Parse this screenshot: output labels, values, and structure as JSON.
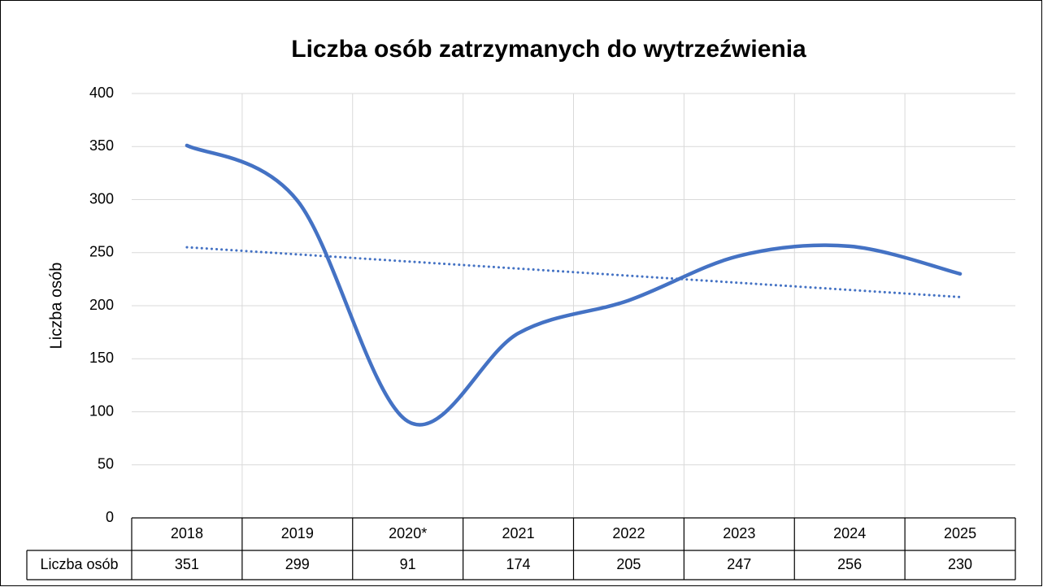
{
  "chart_data": {
    "type": "line",
    "title": "Liczba osób zatrzymanych do wytrzeźwienia",
    "y_label": "Liczba osób",
    "categories": [
      "2018",
      "2019",
      "2020*",
      "2021",
      "2022",
      "2023",
      "2024",
      "2025"
    ],
    "series": [
      {
        "name": "Liczba osób",
        "color": "#4472c4",
        "values": [
          351,
          299,
          91,
          174,
          205,
          247,
          256,
          230
        ]
      }
    ],
    "ylim": [
      0,
      400
    ],
    "yticks": [
      0,
      50,
      100,
      150,
      200,
      250,
      300,
      350,
      400
    ],
    "grid": true,
    "smooth": true,
    "trendline": "linear",
    "data_table": true
  }
}
